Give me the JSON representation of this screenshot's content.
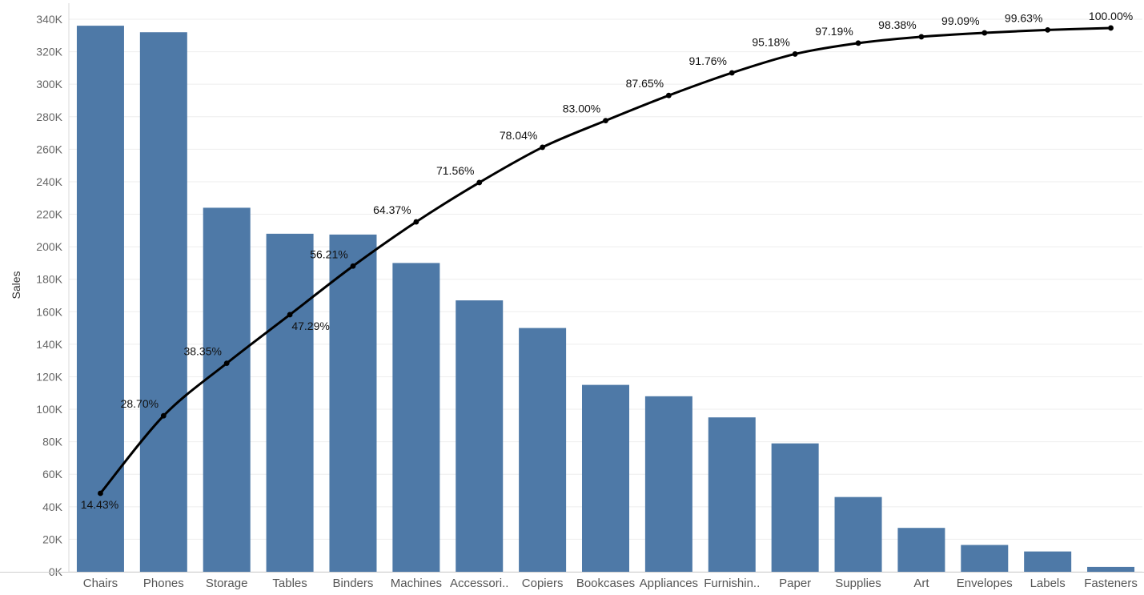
{
  "chart_data": {
    "type": "bar",
    "title": "",
    "xlabel": "",
    "ylabel": "Sales",
    "ylim": [
      0,
      340000
    ],
    "y_ticks": [
      0,
      20000,
      40000,
      60000,
      80000,
      100000,
      120000,
      140000,
      160000,
      180000,
      200000,
      220000,
      240000,
      260000,
      280000,
      300000,
      320000,
      340000
    ],
    "y_tick_labels": [
      "0K",
      "20K",
      "40K",
      "60K",
      "80K",
      "100K",
      "120K",
      "140K",
      "160K",
      "180K",
      "200K",
      "220K",
      "240K",
      "260K",
      "280K",
      "300K",
      "320K",
      "340K"
    ],
    "grid": true,
    "colors": {
      "bar": "#4E79A7",
      "line": "#000000"
    },
    "categories": [
      "Chairs",
      "Phones",
      "Storage",
      "Tables",
      "Binders",
      "Machines",
      "Accessori..",
      "Copiers",
      "Bookcases",
      "Appliances",
      "Furnishin..",
      "Paper",
      "Supplies",
      "Art",
      "Envelopes",
      "Labels",
      "Fasteners"
    ],
    "series": [
      {
        "values": [
          336000,
          332000,
          224000,
          208000,
          207500,
          190000,
          167000,
          150000,
          115000,
          108000,
          95000,
          79000,
          46000,
          27000,
          16500,
          12500,
          3000
        ]
      },
      {
        "type": "line",
        "values": [
          48300,
          96000,
          128300,
          158200,
          188100,
          215300,
          239500,
          261200,
          277600,
          293100,
          307000,
          318600,
          325300,
          329200,
          331600,
          333400,
          334600
        ],
        "labels": [
          "14.43%",
          "28.70%",
          "38.35%",
          "47.29%",
          "56.21%",
          "64.37%",
          "71.56%",
          "78.04%",
          "83.00%",
          "87.65%",
          "91.76%",
          "95.18%",
          "97.19%",
          "98.38%",
          "99.09%",
          "99.63%",
          "100.00%"
        ],
        "label_position": [
          "below",
          "above",
          "above",
          "below",
          "above",
          "above",
          "above",
          "above",
          "above",
          "above",
          "above",
          "above",
          "above",
          "above",
          "above",
          "above",
          "above"
        ]
      }
    ]
  }
}
